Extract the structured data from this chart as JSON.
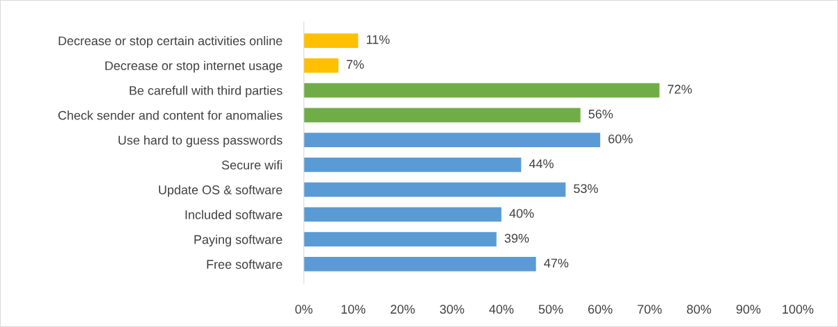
{
  "chart_data": {
    "type": "bar",
    "orientation": "horizontal",
    "categories": [
      "Decrease or stop certain activities online",
      "Decrease or stop internet usage",
      "Be carefull with third parties",
      "Check sender and content for anomalies",
      "Use hard to guess passwords",
      "Secure wifi",
      "Update OS & software",
      "Included software",
      "Paying software",
      "Free software"
    ],
    "values": [
      11,
      7,
      72,
      56,
      60,
      44,
      53,
      40,
      39,
      47
    ],
    "value_labels": [
      "11%",
      "7%",
      "72%",
      "56%",
      "60%",
      "44%",
      "53%",
      "40%",
      "39%",
      "47%"
    ],
    "colors": [
      "#ffc000",
      "#ffc000",
      "#70ad47",
      "#70ad47",
      "#5b9bd5",
      "#5b9bd5",
      "#5b9bd5",
      "#5b9bd5",
      "#5b9bd5",
      "#5b9bd5"
    ],
    "xlim": [
      0,
      100
    ],
    "xticks": [
      {
        "value": 0,
        "label": "0%"
      },
      {
        "value": 10,
        "label": "10%"
      },
      {
        "value": 20,
        "label": "20%"
      },
      {
        "value": 30,
        "label": "30%"
      },
      {
        "value": 40,
        "label": "40%"
      },
      {
        "value": 50,
        "label": "50%"
      },
      {
        "value": 60,
        "label": "60%"
      },
      {
        "value": 70,
        "label": "70%"
      },
      {
        "value": 80,
        "label": "80%"
      },
      {
        "value": 90,
        "label": "90%"
      },
      {
        "value": 100,
        "label": "100%"
      }
    ],
    "grid": false,
    "legend": false
  }
}
